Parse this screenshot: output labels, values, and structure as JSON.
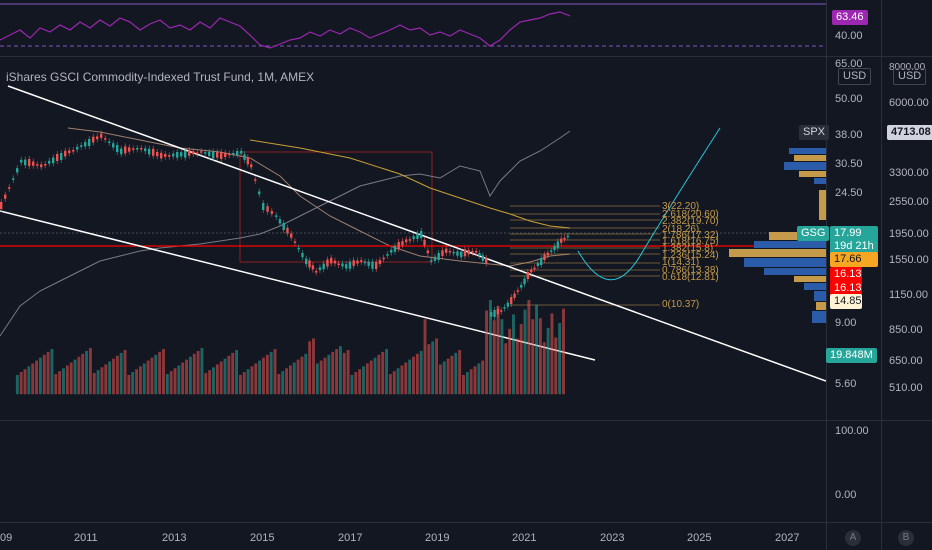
{
  "title": "iShares GSCI Commodity-Indexed Trust Fund, 1M, AMEX",
  "rsi_axis": {
    "labels": [
      "40.00"
    ],
    "badge": "63.46",
    "badge_color": "#9c27b0"
  },
  "left_axis": {
    "top_label": "65.00",
    "currency": "USD",
    "labels": [
      "50.00",
      "38.00",
      "30.50",
      "24.50",
      "9.00",
      "5.60"
    ],
    "volume_labels": [
      "100.00",
      "0.00"
    ]
  },
  "right_axis": {
    "top_label": "8000.00",
    "currency": "USD",
    "labels": [
      "6000.00",
      "3300.00",
      "2550.00",
      "1950.00",
      "1550.00",
      "1150.00",
      "850.00",
      "650.00",
      "510.00"
    ]
  },
  "badges": {
    "spx_label": "SPX",
    "spx_value": "4713.08",
    "gsg_label": "GSG",
    "gsg_price": "17.99",
    "countdown": "19d 21h",
    "level1": "17.66",
    "level2": "16.13",
    "level3": "16.13",
    "level4": "14.85",
    "volume": "19.848M"
  },
  "fib_levels": [
    "3(22.20)",
    "2.618(20.60)",
    "2.382(19.70)",
    "2(18.26)",
    "1.786(17.32)",
    "1.618(16.75)",
    "1.382(15.8)",
    "1.236(15.24)",
    "1(14.31)",
    "0.786(13.38)",
    "0.618(12.81)",
    "0(10.37)"
  ],
  "x_labels": [
    "09",
    "2011",
    "2013",
    "2015",
    "2017",
    "2019",
    "2021",
    "2023",
    "2025",
    "2027"
  ],
  "buttons": {
    "a": "A",
    "b": "B"
  },
  "colors": {
    "background": "#131722",
    "up": "#26a69a",
    "down": "#ef5350",
    "rsi": "#9c27b0",
    "ma": "#c8a032",
    "spx": "#787b86",
    "projection": "#26c6da",
    "trendline": "#ffffff",
    "level_line": "#ff0000"
  }
}
